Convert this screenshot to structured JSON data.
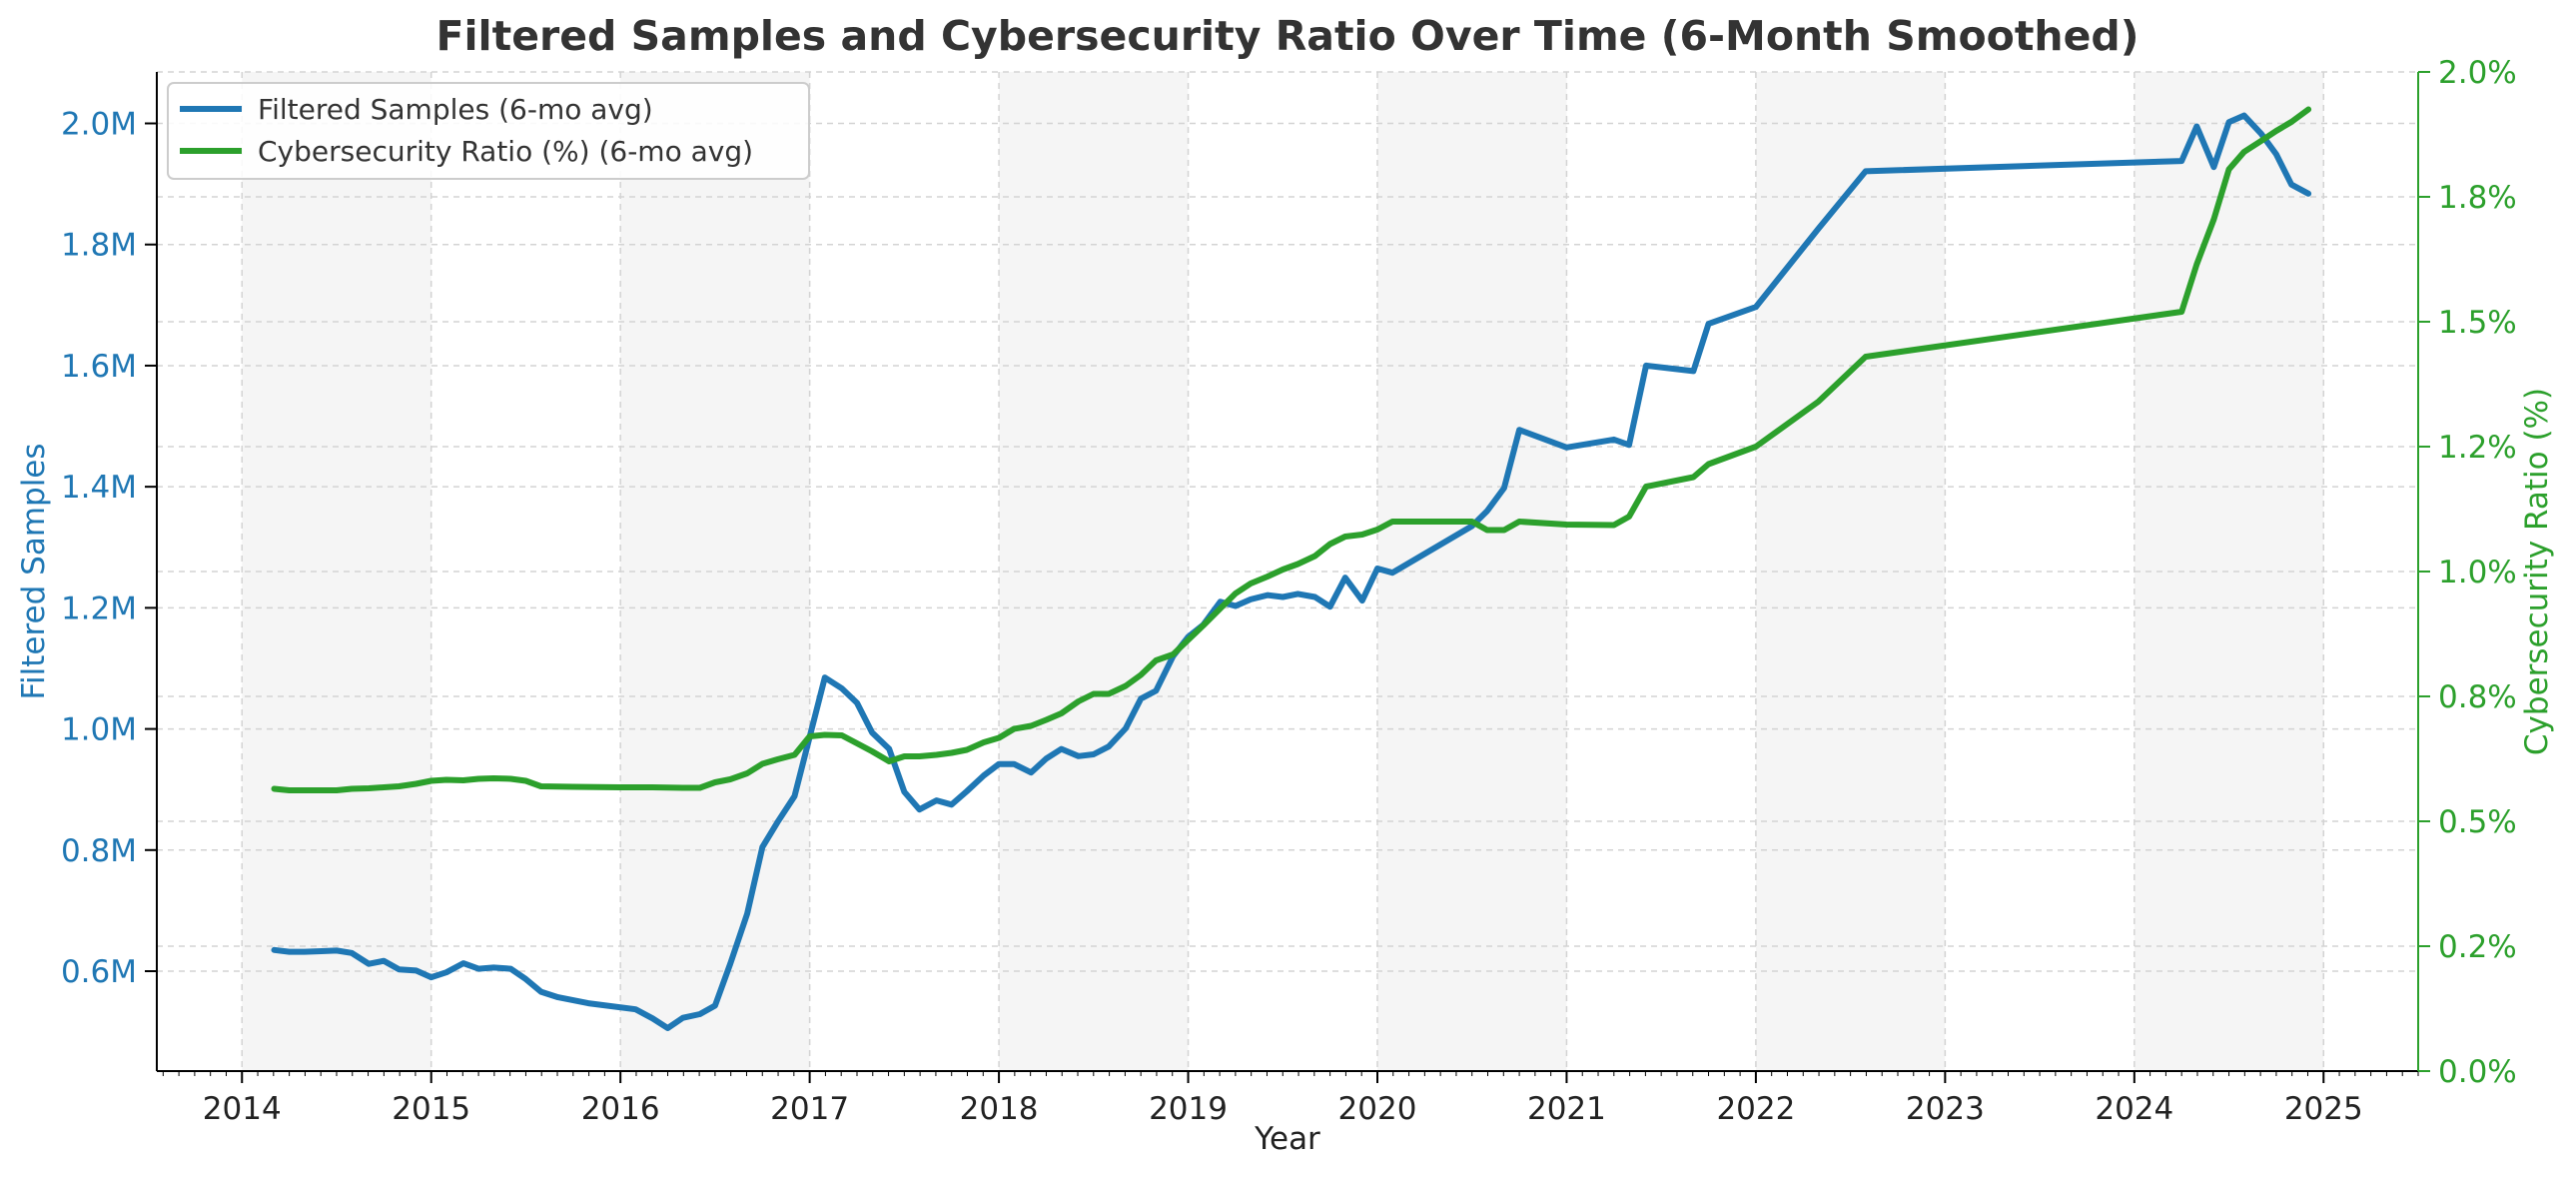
{
  "chart_data": {
    "type": "line",
    "title": "Filtered Samples and Cybersecurity Ratio Over Time (6-Month Smoothed)",
    "xlabel": "Year",
    "ylabel_left": "Filtered Samples",
    "ylabel_right": "Cybersecurity Ratio (%)",
    "xlim": [
      2013.55,
      2025.5
    ],
    "ylim_left": [
      0.435,
      2.085
    ],
    "ylim_right": [
      0.0,
      2.0
    ],
    "x_ticks": [
      2014,
      2015,
      2016,
      2017,
      2018,
      2019,
      2020,
      2021,
      2022,
      2023,
      2024,
      2025
    ],
    "x_tick_labels": [
      "2014",
      "2015",
      "2016",
      "2017",
      "2018",
      "2019",
      "2020",
      "2021",
      "2022",
      "2023",
      "2024",
      "2025"
    ],
    "left_ticks": [
      0.6,
      0.8,
      1.0,
      1.2,
      1.4,
      1.6,
      1.8,
      2.0
    ],
    "left_tick_labels": [
      "0.6M",
      "0.8M",
      "1.0M",
      "1.2M",
      "1.4M",
      "1.6M",
      "1.8M",
      "2.0M"
    ],
    "right_ticks": [
      0.0,
      0.25,
      0.5,
      0.75,
      1.0,
      1.25,
      1.5,
      1.75,
      2.0
    ],
    "right_tick_labels": [
      "0.0%",
      "0.2%",
      "0.5%",
      "0.8%",
      "1.0%",
      "1.2%",
      "1.5%",
      "1.8%",
      "2.0%"
    ],
    "shaded_year_bands": [
      [
        2014,
        2015
      ],
      [
        2016,
        2017
      ],
      [
        2018,
        2019
      ],
      [
        2020,
        2021
      ],
      [
        2022,
        2023
      ],
      [
        2024,
        2025
      ]
    ],
    "grid": true,
    "legend_position": "top-left",
    "colors": {
      "samples": "#1f77b4",
      "ratio": "#2ca02c",
      "band": "#f5f5f5",
      "grid": "#d3d3d3",
      "text": "#333333",
      "axis": "#000000"
    },
    "series": [
      {
        "name": "Filtered Samples (6-mo avg)",
        "axis": "left",
        "unit": "M",
        "x": [
          2014.17,
          2014.25,
          2014.33,
          2014.42,
          2014.5,
          2014.58,
          2014.67,
          2014.75,
          2014.83,
          2014.92,
          2015.0,
          2015.08,
          2015.17,
          2015.25,
          2015.33,
          2015.42,
          2015.5,
          2015.58,
          2015.67,
          2015.75,
          2015.83,
          2016.08,
          2016.17,
          2016.25,
          2016.33,
          2016.42,
          2016.5,
          2016.58,
          2016.67,
          2016.75,
          2016.83,
          2016.92,
          2017.08,
          2017.17,
          2017.25,
          2017.33,
          2017.42,
          2017.5,
          2017.58,
          2017.67,
          2017.75,
          2017.83,
          2017.92,
          2018.0,
          2018.08,
          2018.17,
          2018.25,
          2018.33,
          2018.42,
          2018.5,
          2018.58,
          2018.67,
          2018.75,
          2018.83,
          2018.92,
          2019.0,
          2019.08,
          2019.17,
          2019.25,
          2019.33,
          2019.42,
          2019.5,
          2019.58,
          2019.67,
          2019.75,
          2019.83,
          2019.92,
          2020.0,
          2020.08,
          2020.5,
          2020.58,
          2020.67,
          2020.75,
          2021.0,
          2021.25,
          2021.33,
          2021.42,
          2021.67,
          2021.75,
          2022.0,
          2022.33,
          2022.58,
          2024.25,
          2024.33,
          2024.42,
          2024.5,
          2024.58,
          2024.67,
          2024.75,
          2024.83,
          2024.92
        ],
        "values": [
          0.635,
          0.632,
          0.632,
          0.633,
          0.634,
          0.63,
          0.612,
          0.617,
          0.603,
          0.601,
          0.59,
          0.598,
          0.613,
          0.604,
          0.606,
          0.604,
          0.587,
          0.566,
          0.557,
          0.552,
          0.547,
          0.537,
          0.522,
          0.506,
          0.523,
          0.529,
          0.543,
          0.612,
          0.695,
          0.805,
          0.846,
          0.889,
          1.085,
          1.067,
          1.043,
          0.994,
          0.967,
          0.896,
          0.867,
          0.882,
          0.875,
          0.897,
          0.923,
          0.942,
          0.942,
          0.928,
          0.951,
          0.967,
          0.955,
          0.958,
          0.971,
          1.001,
          1.05,
          1.063,
          1.12,
          1.152,
          1.172,
          1.21,
          1.203,
          1.214,
          1.221,
          1.218,
          1.223,
          1.218,
          1.202,
          1.25,
          1.212,
          1.265,
          1.258,
          1.335,
          1.36,
          1.398,
          1.494,
          1.465,
          1.478,
          1.469,
          1.6,
          1.591,
          1.669,
          1.697,
          1.826,
          1.921,
          1.938,
          1.995,
          1.928,
          2.002,
          2.013,
          1.983,
          1.949,
          1.899,
          1.884
        ]
      },
      {
        "name": "Cybersecurity Ratio (%) (6-mo avg)",
        "axis": "right",
        "unit": "%",
        "x": [
          2014.17,
          2014.25,
          2014.33,
          2014.5,
          2014.58,
          2014.67,
          2014.75,
          2014.83,
          2014.92,
          2015.0,
          2015.08,
          2015.17,
          2015.25,
          2015.33,
          2015.42,
          2015.5,
          2015.58,
          2015.75,
          2016.0,
          2016.17,
          2016.33,
          2016.42,
          2016.5,
          2016.58,
          2016.67,
          2016.75,
          2016.83,
          2016.92,
          2017.0,
          2017.08,
          2017.17,
          2017.25,
          2017.33,
          2017.42,
          2017.5,
          2017.58,
          2017.67,
          2017.75,
          2017.83,
          2017.92,
          2018.0,
          2018.08,
          2018.17,
          2018.25,
          2018.33,
          2018.42,
          2018.5,
          2018.58,
          2018.67,
          2018.75,
          2018.83,
          2018.92,
          2019.0,
          2019.08,
          2019.17,
          2019.25,
          2019.33,
          2019.42,
          2019.5,
          2019.58,
          2019.67,
          2019.75,
          2019.83,
          2019.92,
          2020.0,
          2020.08,
          2020.5,
          2020.58,
          2020.67,
          2020.75,
          2021.0,
          2021.25,
          2021.33,
          2021.42,
          2021.67,
          2021.75,
          2022.0,
          2022.33,
          2022.58,
          2024.25,
          2024.33,
          2024.42,
          2024.5,
          2024.58,
          2024.67,
          2024.75,
          2024.83,
          2024.92
        ],
        "values": [
          0.565,
          0.562,
          0.562,
          0.562,
          0.565,
          0.566,
          0.568,
          0.57,
          0.575,
          0.581,
          0.583,
          0.582,
          0.585,
          0.586,
          0.585,
          0.581,
          0.57,
          0.569,
          0.568,
          0.568,
          0.567,
          0.567,
          0.578,
          0.584,
          0.596,
          0.615,
          0.624,
          0.633,
          0.67,
          0.673,
          0.672,
          0.656,
          0.64,
          0.62,
          0.63,
          0.63,
          0.633,
          0.637,
          0.643,
          0.658,
          0.667,
          0.685,
          0.691,
          0.703,
          0.716,
          0.74,
          0.755,
          0.755,
          0.771,
          0.793,
          0.822,
          0.834,
          0.863,
          0.892,
          0.926,
          0.956,
          0.976,
          0.99,
          1.004,
          1.015,
          1.031,
          1.055,
          1.07,
          1.074,
          1.084,
          1.1,
          1.1,
          1.083,
          1.083,
          1.1,
          1.094,
          1.093,
          1.11,
          1.17,
          1.189,
          1.215,
          1.25,
          1.34,
          1.43,
          1.52,
          1.615,
          1.705,
          1.805,
          1.84,
          1.862,
          1.882,
          1.9,
          1.925
        ]
      }
    ]
  }
}
